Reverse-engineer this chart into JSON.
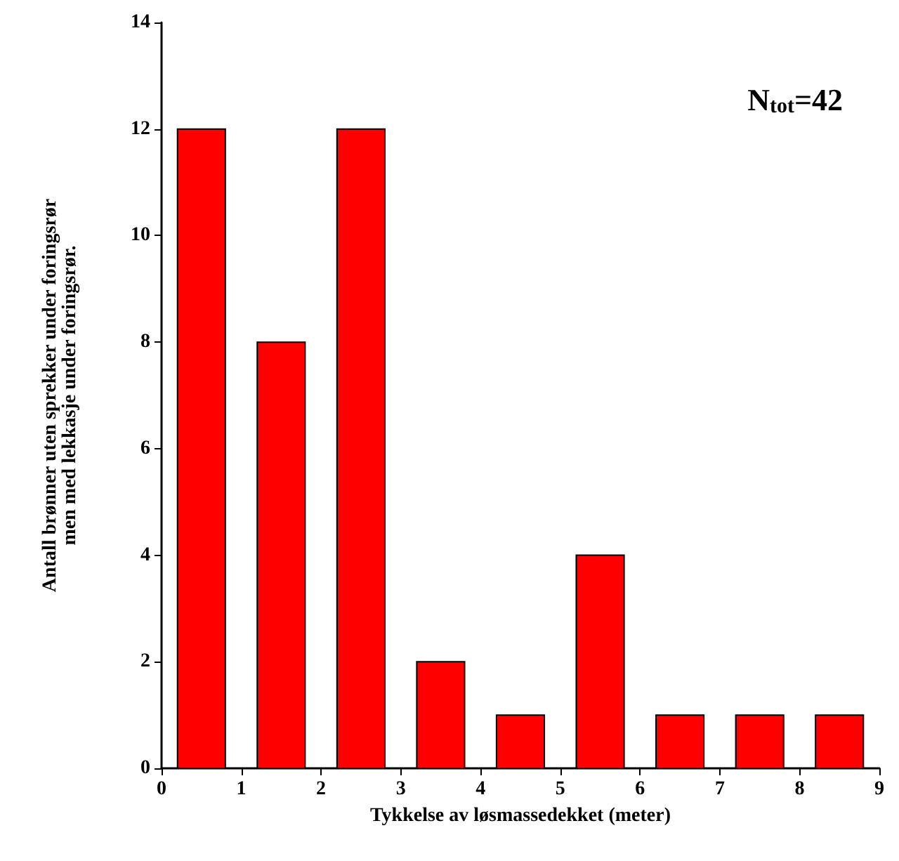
{
  "chart_data": {
    "type": "histogram",
    "xlabel": "Tykkelse av løsmassedekket (meter)",
    "ylabel": "Antall brønner uten sprekker under foringsrør\nmen med lekkasje under foringsrør.",
    "bins": [
      0,
      1,
      2,
      3,
      4,
      5,
      6,
      7,
      8,
      9
    ],
    "values": [
      12,
      8,
      12,
      2,
      1,
      4,
      1,
      1,
      1
    ],
    "color": "#ff0000",
    "xlim": [
      0,
      9
    ],
    "xticks": [
      0,
      1,
      2,
      3,
      4,
      5,
      6,
      7,
      8,
      9
    ],
    "ylim": [
      0,
      14
    ],
    "yticks": [
      0,
      2,
      4,
      6,
      8,
      10,
      12,
      14
    ],
    "annotations": [
      "N$_{tot}$=42"
    ]
  }
}
